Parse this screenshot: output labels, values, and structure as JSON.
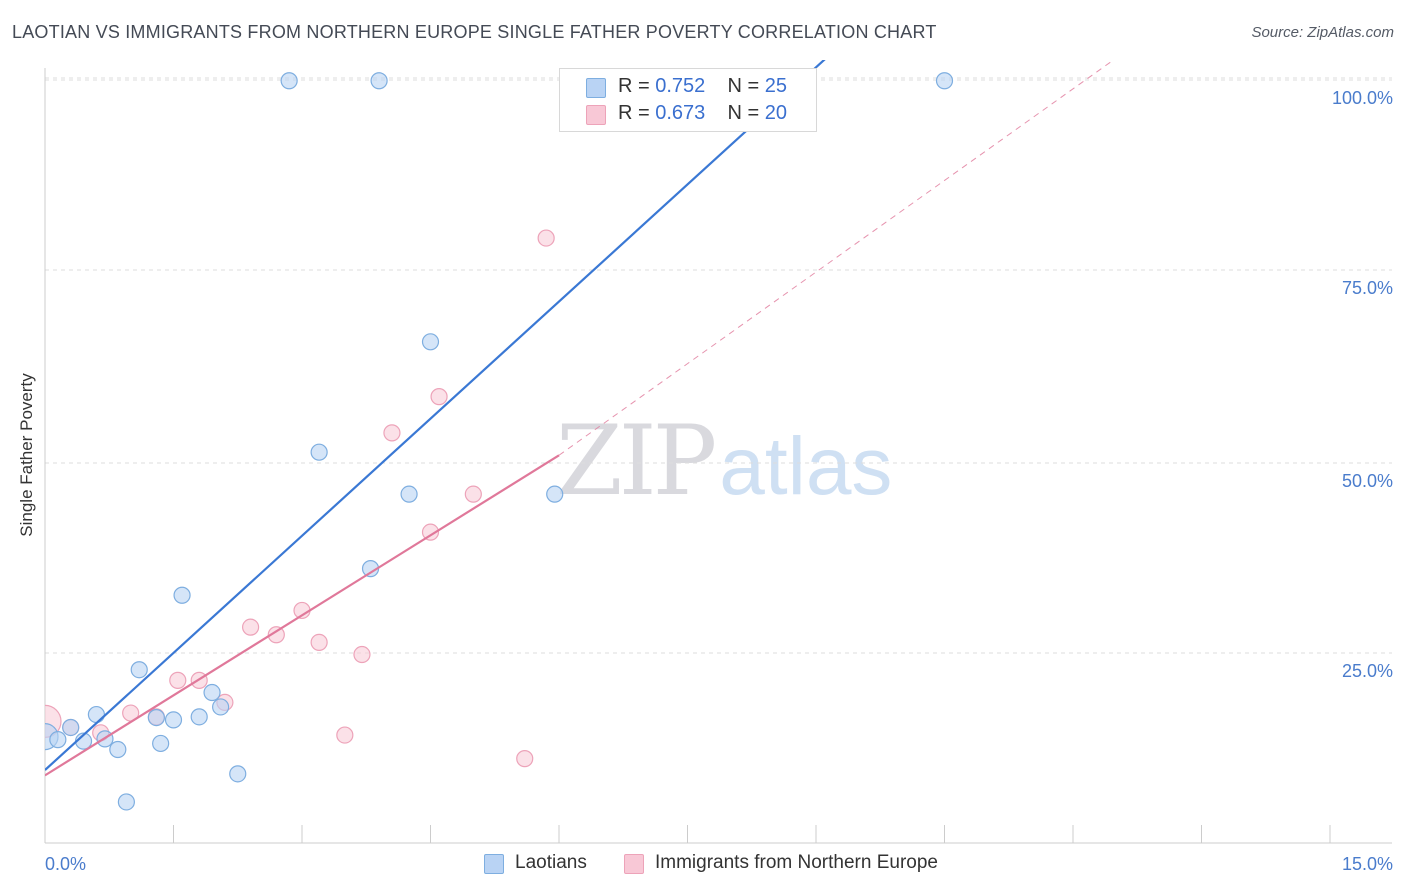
{
  "header": {
    "title": "LAOTIAN VS IMMIGRANTS FROM NORTHERN EUROPE SINGLE FATHER POVERTY CORRELATION CHART",
    "source": "Source: ZipAtlas.com"
  },
  "watermark": {
    "zip": "ZIP",
    "atlas": "atlas"
  },
  "legend": {
    "r_label": "R =",
    "n_label": "N =",
    "series": [
      {
        "name": "Laotians",
        "r": "0.752",
        "n": "25"
      },
      {
        "name": "Immigrants from Northern Europe",
        "r": "0.673",
        "n": "20"
      }
    ]
  },
  "colors": {
    "blue_fill": "#b9d3f4",
    "blue_stroke": "#7eaee0",
    "blue_line": "#3a78d4",
    "pink_fill": "#f8c8d6",
    "pink_stroke": "#eda3b9",
    "pink_line": "#e0789a",
    "grid": "#dddddd",
    "tick_label": "#4a7ccc"
  },
  "chart_data": {
    "type": "scatter",
    "title": "LAOTIAN VS IMMIGRANTS FROM NORTHERN EUROPE SINGLE FATHER POVERTY CORRELATION CHART",
    "xlabel": "",
    "ylabel": "Single Father Poverty",
    "xlim": [
      0,
      15
    ],
    "ylim": [
      0,
      105
    ],
    "x_tick_labels": [
      "0.0%",
      "15.0%"
    ],
    "y_tick_labels": [
      "25.0%",
      "50.0%",
      "75.0%",
      "100.0%"
    ],
    "y_ticks": [
      25,
      50,
      75,
      100
    ],
    "series": [
      {
        "name": "Laotians",
        "r": 0.752,
        "n": 25,
        "points": [
          [
            0.0,
            14.0
          ],
          [
            0.15,
            13.6
          ],
          [
            0.45,
            13.4
          ],
          [
            0.6,
            16.9
          ],
          [
            0.3,
            15.2
          ],
          [
            0.7,
            13.7
          ],
          [
            0.85,
            12.3
          ],
          [
            0.95,
            5.4
          ],
          [
            1.1,
            22.8
          ],
          [
            1.3,
            16.5
          ],
          [
            1.35,
            13.1
          ],
          [
            1.5,
            16.2
          ],
          [
            1.6,
            32.6
          ],
          [
            1.8,
            16.6
          ],
          [
            1.95,
            19.8
          ],
          [
            2.05,
            17.9
          ],
          [
            2.25,
            9.1
          ],
          [
            2.85,
            99.9
          ],
          [
            3.2,
            51.4
          ],
          [
            3.8,
            36.1
          ],
          [
            3.9,
            99.9
          ],
          [
            4.25,
            45.9
          ],
          [
            4.5,
            65.7
          ],
          [
            5.95,
            45.9
          ],
          [
            10.5,
            99.9
          ]
        ],
        "trend": [
          [
            0.0,
            9.6
          ],
          [
            9.35,
            105.0
          ]
        ]
      },
      {
        "name": "Immigrants from Northern Europe",
        "r": 0.673,
        "n": 20,
        "points": [
          [
            0.0,
            16.0
          ],
          [
            0.3,
            15.2
          ],
          [
            0.65,
            14.5
          ],
          [
            1.0,
            17.1
          ],
          [
            1.3,
            16.6
          ],
          [
            1.55,
            21.4
          ],
          [
            1.8,
            21.4
          ],
          [
            2.1,
            18.5
          ],
          [
            2.4,
            28.4
          ],
          [
            2.7,
            27.4
          ],
          [
            3.0,
            30.6
          ],
          [
            3.2,
            26.4
          ],
          [
            3.5,
            14.2
          ],
          [
            3.7,
            24.8
          ],
          [
            4.05,
            53.9
          ],
          [
            4.5,
            40.9
          ],
          [
            4.6,
            58.6
          ],
          [
            5.0,
            45.9
          ],
          [
            5.6,
            11.1
          ],
          [
            5.85,
            79.2
          ]
        ],
        "trend": [
          [
            0.0,
            8.9
          ],
          [
            6.0,
            51.0
          ]
        ],
        "trend_extension": [
          [
            6.0,
            51.0
          ],
          [
            12.8,
            105.0
          ]
        ]
      }
    ]
  }
}
